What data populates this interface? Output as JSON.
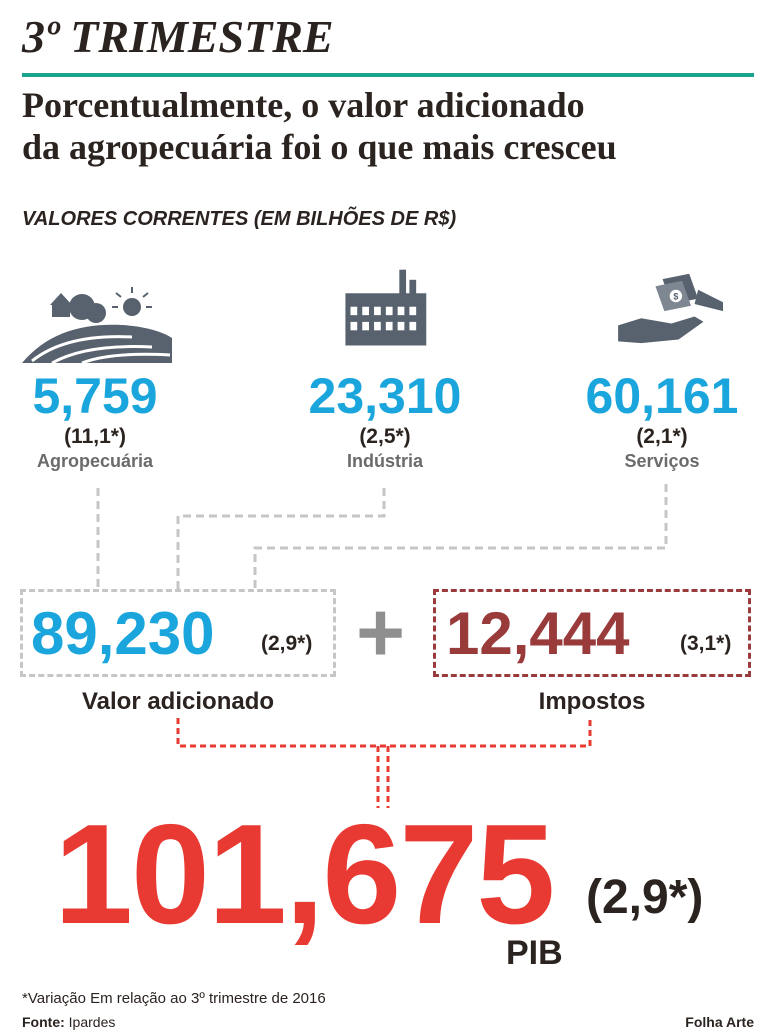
{
  "header": {
    "kicker": "3º TRIMESTRE",
    "headline_line1": "Porcentualmente, o valor adicionado",
    "headline_line2": "da agropecuária foi o que mais cresceu",
    "subtitle": "VALORES CORRENTES (EM BILHÕES DE R$)"
  },
  "sectors": [
    {
      "icon": "farm-landscape-icon",
      "value": "5,759",
      "change": "(11,1*)",
      "label": "Agropecuária"
    },
    {
      "icon": "factory-icon",
      "value": "23,310",
      "change": "(2,5*)",
      "label": "Indústria"
    },
    {
      "icon": "money-hands-icon",
      "value": "60,161",
      "change": "(2,1*)",
      "label": "Serviços"
    }
  ],
  "valor_adicionado": {
    "value": "89,230",
    "change": "(2,9*)",
    "label": "Valor adicionado"
  },
  "operator": "+",
  "impostos": {
    "value": "12,444",
    "change": "(3,1*)",
    "label": "Impostos"
  },
  "pib": {
    "value": "101,675",
    "change": "(2,9*)",
    "label": "PIB"
  },
  "footer": {
    "note": "*Variação Em relação ao 3º trimestre de 2016",
    "source_label": "Fonte:",
    "source_value": "Ipardes",
    "credit": "Folha Arte"
  },
  "colors": {
    "blue": "#1aa6dc",
    "red": "#e83a32",
    "dark_red": "#9a3b3b",
    "teal": "#1aa58f",
    "gray": "#c6c6c6"
  }
}
